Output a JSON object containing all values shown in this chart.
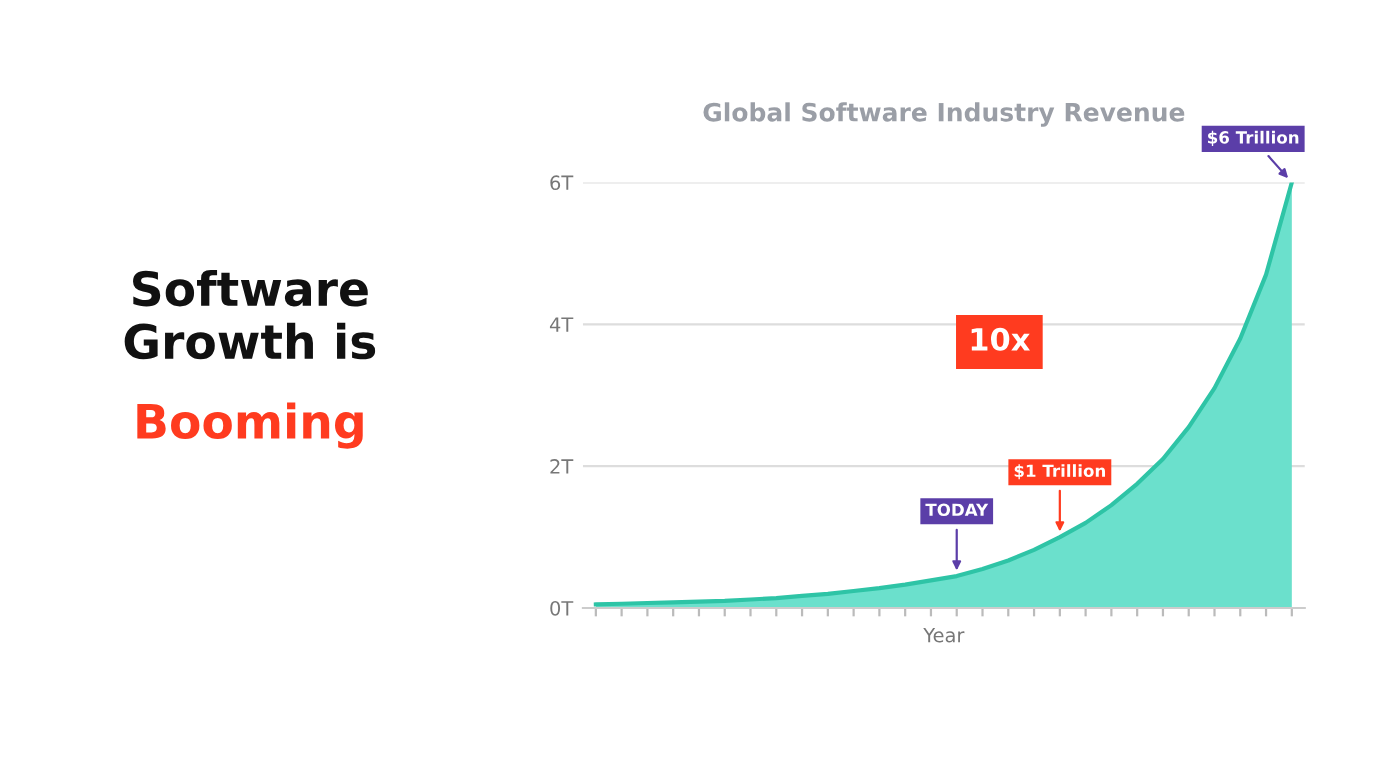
{
  "chart_data": {
    "type": "area",
    "title": "Global Software Industry Revenue",
    "xlabel": "Year",
    "categories": [
      null,
      null,
      null,
      null,
      null,
      null,
      null,
      null,
      null,
      null,
      null,
      null,
      null,
      null,
      null,
      null,
      null,
      null,
      null,
      null,
      null,
      null,
      null,
      null,
      null,
      null,
      null,
      null
    ],
    "series": [
      {
        "color": "#6be0cc",
        "values": [
          0.05,
          0.06,
          0.07,
          0.08,
          0.09,
          0.1,
          0.12,
          0.14,
          0.17,
          0.2,
          0.24,
          0.28,
          0.33,
          0.39,
          0.45,
          0.55,
          0.67,
          0.82,
          1.0,
          1.2,
          1.45,
          1.75,
          2.1,
          2.55,
          3.1,
          3.8,
          4.7,
          6
        ]
      }
    ],
    "ylim": [
      0,
      6
    ],
    "yticks": [
      {
        "value": 0,
        "label": "0T"
      },
      {
        "value": 2,
        "label": "2T"
      },
      {
        "value": 4,
        "label": "4T"
      },
      {
        "value": 6,
        "label": "6T"
      }
    ],
    "grid": "y",
    "tick_labels": "y",
    "annotations": [
      "Software\nGrowth is",
      "Booming",
      "10x",
      {
        "text": "TODAY",
        "y": 0.45
      },
      {
        "text": "$1 Trillion",
        "y": 1.0
      },
      "$6 Trillion"
    ]
  }
}
